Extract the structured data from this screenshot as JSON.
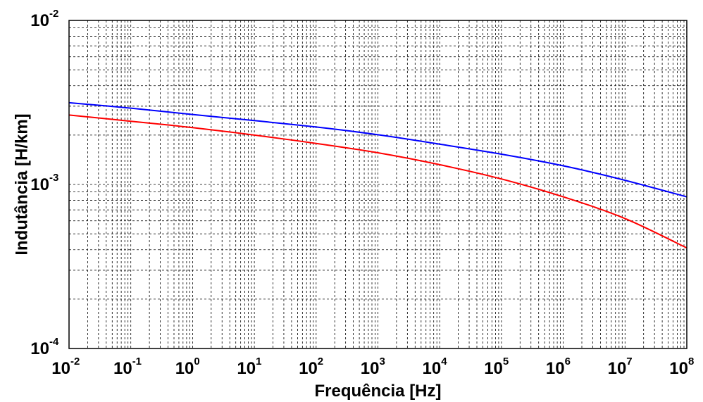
{
  "chart_data": {
    "type": "line",
    "xlabel": "Frequência [Hz]",
    "ylabel": "Indutância [H/km]",
    "x_scale": "log",
    "y_scale": "log",
    "xlim": [
      0.01,
      100000000
    ],
    "ylim": [
      0.0001,
      0.01
    ],
    "grid": true,
    "legend": "none",
    "x_ticks": [
      {
        "base": "10",
        "exp": "-2"
      },
      {
        "base": "10",
        "exp": "-1"
      },
      {
        "base": "10",
        "exp": "0"
      },
      {
        "base": "10",
        "exp": "1"
      },
      {
        "base": "10",
        "exp": "2"
      },
      {
        "base": "10",
        "exp": "3"
      },
      {
        "base": "10",
        "exp": "4"
      },
      {
        "base": "10",
        "exp": "5"
      },
      {
        "base": "10",
        "exp": "6"
      },
      {
        "base": "10",
        "exp": "7"
      },
      {
        "base": "10",
        "exp": "8"
      }
    ],
    "y_ticks": [
      {
        "base": "10",
        "exp": "-4"
      },
      {
        "base": "10",
        "exp": "-3"
      },
      {
        "base": "10",
        "exp": "-2"
      }
    ],
    "x": [
      0.01,
      0.1,
      1,
      10,
      100,
      1000,
      10000,
      100000,
      1000000,
      10000000,
      100000000
    ],
    "series": [
      {
        "color": "#0000ff",
        "values": [
          0.00315,
          0.00292,
          0.00267,
          0.00245,
          0.00224,
          0.00201,
          0.00176,
          0.00153,
          0.0013,
          0.00106,
          0.00084
        ]
      },
      {
        "color": "#ff0000",
        "values": [
          0.00265,
          0.00243,
          0.00222,
          0.002,
          0.00178,
          0.00156,
          0.00132,
          0.00108,
          0.00084,
          0.00062,
          0.00041
        ]
      }
    ]
  }
}
